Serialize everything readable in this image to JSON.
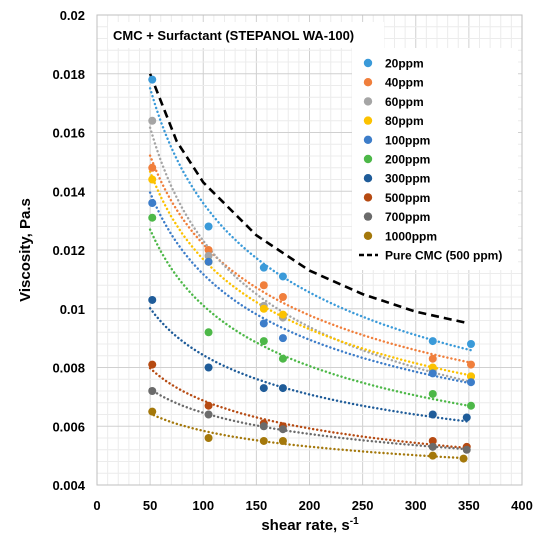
{
  "chart_data": {
    "type": "scatter",
    "title": "CMC + Surfactant (STEPANOL WA-100)",
    "xlabel": "shear rate, s",
    "xlabel_sup": "-1",
    "ylabel": "Viscosity, Pa.s",
    "xlim": [
      0,
      400
    ],
    "ylim": [
      0.004,
      0.02
    ],
    "x_ticks": [
      "0",
      "50",
      "100",
      "150",
      "200",
      "250",
      "300",
      "350",
      "400"
    ],
    "y_ticks": [
      "0.004",
      "0.006",
      "0.008",
      "0.01",
      "0.012",
      "0.014",
      "0.016",
      "0.018",
      "0.02"
    ],
    "grid": true,
    "legend_position": "right",
    "series": [
      {
        "name": "20ppm",
        "color": "#3a9ad9",
        "x": [
          52,
          105,
          157,
          175,
          316,
          352
        ],
        "y": [
          0.0178,
          0.0128,
          0.0114,
          0.0111,
          0.0089,
          0.0088
        ]
      },
      {
        "name": "40ppm",
        "color": "#f07f3c",
        "x": [
          52,
          105,
          157,
          175,
          316,
          352
        ],
        "y": [
          0.0148,
          0.012,
          0.0108,
          0.0104,
          0.0083,
          0.0081
        ]
      },
      {
        "name": "60ppm",
        "color": "#a5a5a5",
        "x": [
          52,
          105,
          157,
          175,
          316,
          352
        ],
        "y": [
          0.0164,
          0.0118,
          0.0101,
          0.0097,
          0.0079,
          0.0077
        ]
      },
      {
        "name": "80ppm",
        "color": "#fcc200",
        "x": [
          52,
          105,
          157,
          175,
          316,
          352
        ],
        "y": [
          0.0144,
          0.0116,
          0.01,
          0.0098,
          0.008,
          0.0077
        ]
      },
      {
        "name": "100ppm",
        "color": "#3d7dc9",
        "x": [
          52,
          105,
          157,
          175,
          316,
          352
        ],
        "y": [
          0.0136,
          0.0116,
          0.0095,
          0.009,
          0.0078,
          0.0075
        ]
      },
      {
        "name": "200ppm",
        "color": "#4db848",
        "x": [
          52,
          105,
          157,
          175,
          316,
          352
        ],
        "y": [
          0.0131,
          0.0092,
          0.0089,
          0.0083,
          0.0071,
          0.0067
        ]
      },
      {
        "name": "300ppm",
        "color": "#1f5c99",
        "x": [
          52,
          105,
          157,
          175,
          316,
          348
        ],
        "y": [
          0.0103,
          0.008,
          0.0073,
          0.0073,
          0.0064,
          0.0063
        ]
      },
      {
        "name": "500ppm",
        "color": "#b64a12",
        "x": [
          52,
          105,
          157,
          175,
          316,
          348
        ],
        "y": [
          0.0081,
          0.0067,
          0.0061,
          0.006,
          0.0055,
          0.0053
        ]
      },
      {
        "name": "700ppm",
        "color": "#6b6b6b",
        "x": [
          52,
          105,
          157,
          175,
          316,
          348
        ],
        "y": [
          0.0072,
          0.0064,
          0.006,
          0.0059,
          0.0053,
          0.0052
        ]
      },
      {
        "name": "1000ppm",
        "color": "#a4780b",
        "x": [
          52,
          105,
          157,
          175,
          316,
          345
        ],
        "y": [
          0.0065,
          0.0056,
          0.0055,
          0.0055,
          0.005,
          0.0049
        ]
      }
    ],
    "reference_line": {
      "name": "Pure CMC (500 ppm)",
      "color": "#000000",
      "x": [
        50,
        75,
        100,
        150,
        200,
        250,
        300,
        350
      ],
      "y": [
        0.018,
        0.0157,
        0.0143,
        0.0125,
        0.0113,
        0.0105,
        0.0099,
        0.0095
      ]
    }
  }
}
